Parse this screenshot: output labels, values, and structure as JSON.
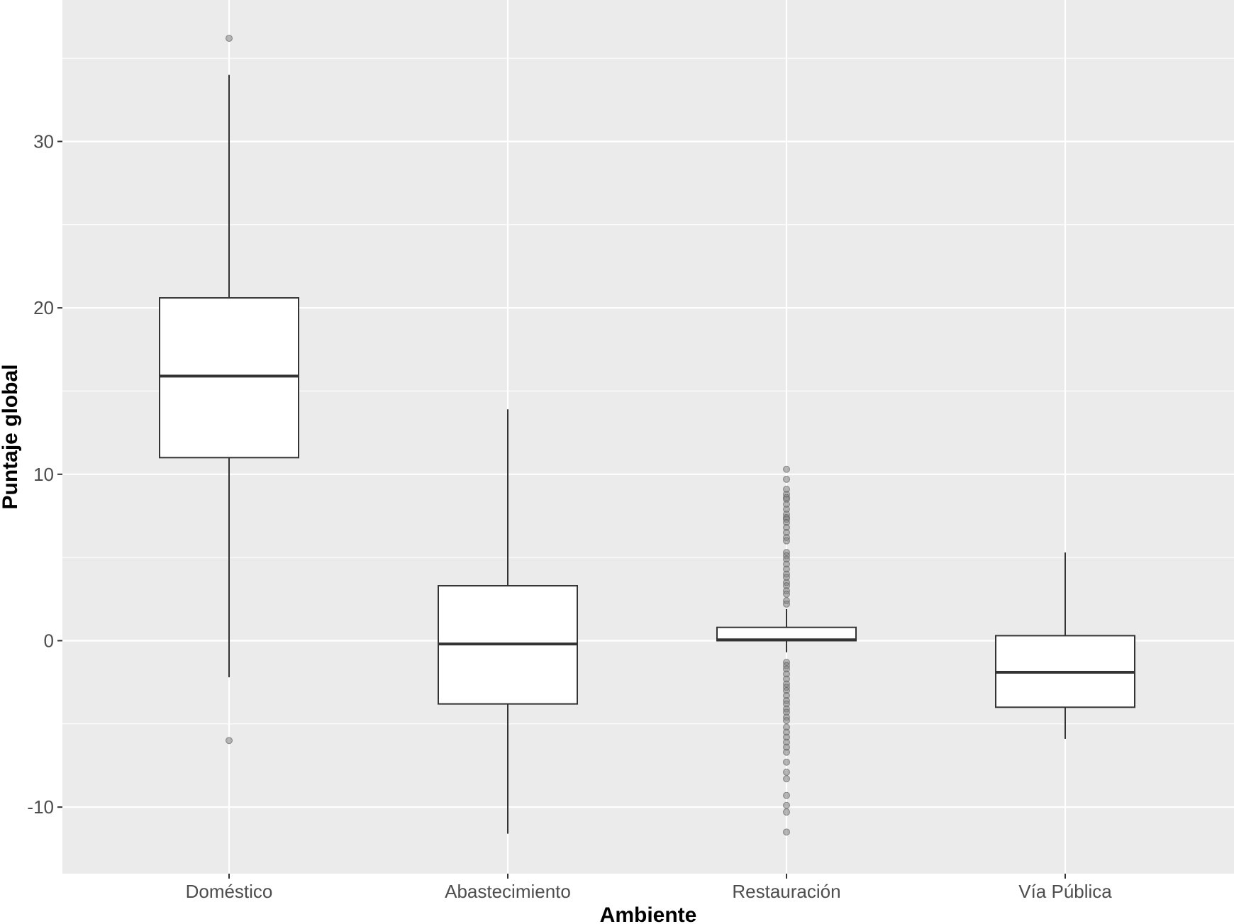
{
  "chart_data": {
    "type": "boxplot",
    "title": "",
    "xlabel": "Ambiente",
    "ylabel": "Puntaje global",
    "ylim": [
      -14,
      38.5
    ],
    "yticks": [
      -10,
      0,
      10,
      20,
      30
    ],
    "grid": true,
    "legend": "none",
    "categories": [
      "Doméstico",
      "Abastecimiento",
      "Restauración",
      "Vía Pública"
    ],
    "boxes": [
      {
        "category": "Doméstico",
        "whisker_low": -2.2,
        "q1": 11.0,
        "median": 15.9,
        "q3": 20.6,
        "whisker_high": 34.0,
        "outliers": [
          36.2,
          -6.0
        ]
      },
      {
        "category": "Abastecimiento",
        "whisker_low": -11.6,
        "q1": -3.8,
        "median": -0.2,
        "q3": 3.3,
        "whisker_high": 13.9,
        "outliers": []
      },
      {
        "category": "Restauración",
        "whisker_low": -0.7,
        "q1": 0.0,
        "median": 0.05,
        "q3": 0.8,
        "whisker_high": 1.9,
        "outliers": [
          10.3,
          9.7,
          9.1,
          8.8,
          8.6,
          8.5,
          8.2,
          7.9,
          7.6,
          7.4,
          7.3,
          7.1,
          6.8,
          6.5,
          6.2,
          6.0,
          5.3,
          5.1,
          4.9,
          4.6,
          4.3,
          4.0,
          3.8,
          3.5,
          3.3,
          3.0,
          2.8,
          2.4,
          2.2,
          -1.3,
          -1.5,
          -1.7,
          -2.0,
          -2.3,
          -2.6,
          -2.8,
          -3.0,
          -3.3,
          -3.6,
          -3.8,
          -4.1,
          -4.3,
          -4.6,
          -4.8,
          -5.2,
          -5.5,
          -5.8,
          -6.1,
          -6.4,
          -6.7,
          -7.3,
          -7.9,
          -8.3,
          -9.3,
          -9.9,
          -10.3,
          -11.5
        ]
      },
      {
        "category": "Vía Pública",
        "whisker_low": -5.9,
        "q1": -4.0,
        "median": -1.9,
        "q3": 0.3,
        "whisker_high": 5.3,
        "outliers": []
      }
    ],
    "colors": {
      "panel": "#ebebeb",
      "grid_major": "#ffffff",
      "box_fill": "#ffffff",
      "box_stroke": "#333333",
      "outlier": "#7f7f7f"
    }
  }
}
